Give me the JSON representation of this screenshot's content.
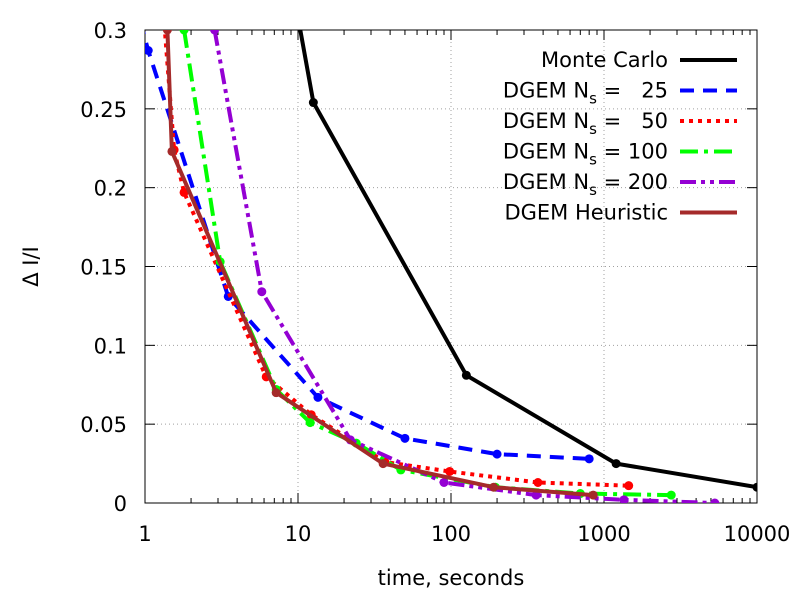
{
  "chart_data": {
    "type": "line",
    "title": "",
    "xlabel": "time, seconds",
    "ylabel": "Δ I/I",
    "x_scale": "log",
    "xlim": [
      1,
      10000
    ],
    "ylim": [
      0,
      0.3
    ],
    "grid": true,
    "legend_position": "top-right",
    "x_ticks": [
      {
        "value": 1,
        "label": "1"
      },
      {
        "value": 10,
        "label": "10"
      },
      {
        "value": 100,
        "label": "100"
      },
      {
        "value": 1000,
        "label": "1000"
      },
      {
        "value": 10000,
        "label": "10000"
      }
    ],
    "y_ticks": [
      {
        "value": 0,
        "label": "0"
      },
      {
        "value": 0.05,
        "label": "0.05"
      },
      {
        "value": 0.1,
        "label": "0.1"
      },
      {
        "value": 0.15,
        "label": "0.15"
      },
      {
        "value": 0.2,
        "label": "0.2"
      },
      {
        "value": 0.25,
        "label": "0.25"
      },
      {
        "value": 0.3,
        "label": "0.3"
      }
    ],
    "series": [
      {
        "name": "Monte Carlo",
        "legend_main": "Monte Carlo",
        "legend_sub": "",
        "legend_tail": "",
        "color": "#000000",
        "dash": "solid",
        "markers": true,
        "x": [
          9.5,
          12.6,
          126,
          1200,
          10000
        ],
        "y": [
          0.32,
          0.254,
          0.081,
          0.025,
          0.01
        ]
      },
      {
        "name": "DGEM Ns = 25",
        "legend_main": "DGEM N",
        "legend_sub": "s",
        "legend_tail": " =   25",
        "color": "#0000ff",
        "dash": "dashed",
        "markers": true,
        "x": [
          0.85,
          1.05,
          3.5,
          13.5,
          50,
          200,
          800
        ],
        "y": [
          0.32,
          0.287,
          0.131,
          0.067,
          0.041,
          0.031,
          0.028
        ]
      },
      {
        "name": "DGEM Ns = 50",
        "legend_main": "DGEM N",
        "legend_sub": "s",
        "legend_tail": " =   50",
        "color": "#ff0000",
        "dash": "dotted",
        "markers": true,
        "x": [
          1.3,
          1.55,
          1.8,
          6.2,
          12.2,
          37,
          98,
          370,
          1450
        ],
        "y": [
          0.32,
          0.224,
          0.197,
          0.08,
          0.056,
          0.026,
          0.02,
          0.013,
          0.011
        ]
      },
      {
        "name": "DGEM Ns = 100",
        "legend_main": "DGEM N",
        "legend_sub": "s",
        "legend_tail": " = 100",
        "color": "#00ff00",
        "dash": "dashdot",
        "markers": true,
        "x": [
          1.8,
          3.1,
          7.2,
          12,
          24,
          47,
          195,
          700,
          2750
        ],
        "y": [
          0.3,
          0.153,
          0.072,
          0.051,
          0.038,
          0.021,
          0.01,
          0.006,
          0.005
        ]
      },
      {
        "name": "DGEM Ns = 200",
        "legend_main": "DGEM N",
        "legend_sub": "s",
        "legend_tail": " = 200",
        "color": "#9400d3",
        "dash": "dashdotdot",
        "markers": true,
        "x": [
          2.85,
          5.8,
          22,
          90,
          360,
          1350,
          5300
        ],
        "y": [
          0.3,
          0.134,
          0.04,
          0.013,
          0.005,
          0.002,
          0
        ]
      },
      {
        "name": "DGEM Heuristic",
        "legend_main": "DGEM Heuristic",
        "legend_sub": "",
        "legend_tail": "",
        "color": "#a52a2a",
        "dash": "solid",
        "markers": true,
        "x": [
          1.4,
          1.5,
          7.2,
          36,
          190,
          850
        ],
        "y": [
          0.3,
          0.223,
          0.07,
          0.025,
          0.01,
          0.005
        ]
      }
    ]
  }
}
